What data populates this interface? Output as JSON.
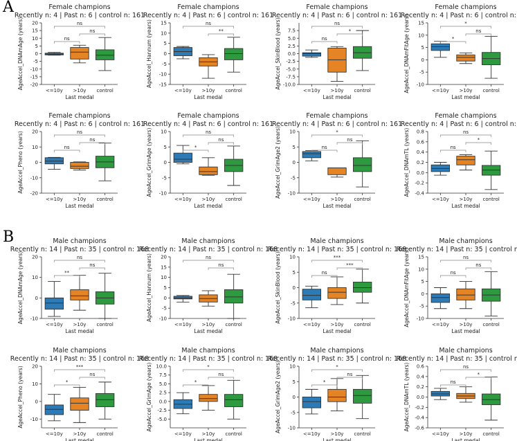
{
  "panel_labels": [
    "A",
    "B"
  ],
  "shared": {
    "xlabel": "Last medal",
    "groups": [
      "<=10y",
      ">10y",
      "control"
    ],
    "colors": [
      "#2c7bb6",
      "#e58424",
      "#2e9a3f"
    ]
  },
  "chart_data": [
    {
      "type": "box",
      "panel": "A",
      "title": "Female champions",
      "subtitle": "Recently n: 4 | Past n: 6 | control n: 161",
      "ylabel": "AgeAccel_DNAmAge (years)",
      "ylim": [
        -20,
        20
      ],
      "yticks": [
        -20,
        -15,
        -10,
        -5,
        0,
        5,
        10,
        15,
        20
      ],
      "boxes": [
        {
          "min": -1,
          "q1": -0.8,
          "median": -0.3,
          "q3": 0.3,
          "max": 0.8
        },
        {
          "min": -6,
          "q1": -3.5,
          "median": 1,
          "q3": 4,
          "max": 5.5
        },
        {
          "min": -11,
          "q1": -4,
          "median": -1,
          "q3": 2.5,
          "max": 10.5
        }
      ],
      "sig": [
        {
          "from": 0,
          "to": 2,
          "label": "ns"
        },
        {
          "from": 1,
          "to": 2,
          "label": "ns"
        },
        {
          "from": 0,
          "to": 1,
          "label": "ns"
        }
      ]
    },
    {
      "type": "box",
      "panel": "A",
      "title": "Female champions",
      "subtitle": "Recently n: 4 | Past n: 6 | control n: 161",
      "ylabel": "AgeAccel_Hannum (years)",
      "ylim": [
        -15,
        15
      ],
      "yticks": [
        -15,
        -10,
        -5,
        0,
        5,
        10,
        15
      ],
      "boxes": [
        {
          "min": -2.5,
          "q1": -1,
          "median": 1,
          "q3": 3,
          "max": 3.5
        },
        {
          "min": -12,
          "q1": -6,
          "median": -4,
          "q3": -2,
          "max": -0.5
        },
        {
          "min": -9,
          "q1": -3,
          "median": 0,
          "q3": 2.5,
          "max": 8
        }
      ],
      "sig": [
        {
          "from": 0,
          "to": 2,
          "label": "ns"
        },
        {
          "from": 1,
          "to": 2,
          "label": "**"
        }
      ]
    },
    {
      "type": "box",
      "panel": "A",
      "title": "Female champions",
      "subtitle": "Recently n: 4 | Past n: 6 | control n: 161",
      "ylabel": "AgeAccel_SkinBlood (years)",
      "ylim": [
        -10,
        10
      ],
      "yticks": [
        -10,
        -7.5,
        -5,
        -2.5,
        0,
        2.5,
        5,
        7.5
      ],
      "boxes": [
        {
          "min": -1.2,
          "q1": -0.8,
          "median": 0,
          "q3": 0.3,
          "max": 1.2
        },
        {
          "min": -9,
          "q1": -6,
          "median": -2,
          "q3": 1.8,
          "max": 2.3
        },
        {
          "min": -5.5,
          "q1": -1.5,
          "median": 0.3,
          "q3": 2.3,
          "max": 7.5
        }
      ],
      "sig": [
        {
          "from": 0,
          "to": 2,
          "label": "ns"
        },
        {
          "from": 1,
          "to": 2,
          "label": "*"
        },
        {
          "from": 0,
          "to": 1,
          "label": "ns"
        }
      ]
    },
    {
      "type": "box",
      "panel": "A",
      "title": "Female champions",
      "subtitle": "Recently n: 4 | Past n: 6 | control n: 161",
      "ylabel": "AgeAccel_DNAmFitAge (years)",
      "ylim": [
        -10,
        15
      ],
      "yticks": [
        -10,
        -5,
        0,
        5,
        10,
        15
      ],
      "boxes": [
        {
          "min": 1,
          "q1": 3.8,
          "median": 5.3,
          "q3": 6.5,
          "max": 7.5
        },
        {
          "min": -1.5,
          "q1": -0.5,
          "median": 1,
          "q3": 2,
          "max": 2.8
        },
        {
          "min": -7.5,
          "q1": -2,
          "median": 0.5,
          "q3": 3,
          "max": 9.5
        }
      ],
      "sig": [
        {
          "from": 0,
          "to": 2,
          "label": "*"
        },
        {
          "from": 1,
          "to": 2,
          "label": "ns"
        },
        {
          "from": 0,
          "to": 1,
          "label": "*"
        }
      ]
    },
    {
      "type": "box",
      "panel": "A",
      "title": "Female champions",
      "subtitle": "Recently n: 4 | Past n: 6 | control n: 161",
      "ylabel": "AgeAccel_Pheno (years)",
      "ylim": [
        -20,
        20
      ],
      "yticks": [
        -20,
        -10,
        0,
        10,
        20
      ],
      "boxes": [
        {
          "min": -4.5,
          "q1": -1,
          "median": 0.8,
          "q3": 3,
          "max": 3.2
        },
        {
          "min": -5,
          "q1": -4,
          "median": -2.5,
          "q3": 0,
          "max": 0.3
        },
        {
          "min": -12,
          "q1": -3.5,
          "median": 0.3,
          "q3": 4,
          "max": 12.5
        }
      ],
      "sig": [
        {
          "from": 0,
          "to": 2,
          "label": "ns"
        },
        {
          "from": 1,
          "to": 2,
          "label": "ns"
        },
        {
          "from": 0,
          "to": 1,
          "label": "ns"
        }
      ]
    },
    {
      "type": "box",
      "panel": "A",
      "title": "Female champions",
      "subtitle": "Recently n: 4 | Past n: 6 | control n: 161",
      "ylabel": "AgeAccel_GrimAge (years)",
      "ylim": [
        -10,
        10
      ],
      "yticks": [
        -10,
        -5,
        0,
        5,
        10
      ],
      "boxes": [
        {
          "min": -0.5,
          "q1": 0,
          "median": 1,
          "q3": 3,
          "max": 5.5
        },
        {
          "min": -4.2,
          "q1": -4,
          "median": -3,
          "q3": -1.5,
          "max": 1.5
        },
        {
          "min": -7.5,
          "q1": -3,
          "median": -1,
          "q3": 1,
          "max": 5.3
        }
      ],
      "sig": [
        {
          "from": 0,
          "to": 2,
          "label": "ns"
        },
        {
          "from": 1,
          "to": 2,
          "label": "ns"
        },
        {
          "from": 0,
          "to": 1,
          "label": "*"
        }
      ]
    },
    {
      "type": "box",
      "panel": "A",
      "title": "Female champions",
      "subtitle": "Recently n: 4 | Past n: 6 | control n: 161",
      "ylabel": "AgeAccel_GrimAge2 (years)",
      "ylim": [
        -10,
        10
      ],
      "yticks": [
        -10,
        -5,
        0,
        5,
        10
      ],
      "boxes": [
        {
          "min": 0.5,
          "q1": 1.5,
          "median": 2.8,
          "q3": 3.5,
          "max": 3.8
        },
        {
          "min": -4.8,
          "q1": -4,
          "median": -1.8,
          "q3": -1.8,
          "max": -1.8
        },
        {
          "min": -8,
          "q1": -3,
          "median": -1,
          "q3": 1.5,
          "max": 7
        }
      ],
      "sig": [
        {
          "from": 0,
          "to": 2,
          "label": "*"
        },
        {
          "from": 1,
          "to": 2,
          "label": "ns"
        },
        {
          "from": 0,
          "to": 1,
          "label": "ns"
        }
      ]
    },
    {
      "type": "box",
      "panel": "A",
      "title": "Female champions",
      "subtitle": "Recently n: 4 | Past n: 6 | control n: 161",
      "ylabel": "AgeAccel_DNAmTL (years)",
      "ylim": [
        -0.4,
        0.8
      ],
      "yticks": [
        -0.4,
        -0.2,
        0.0,
        0.2,
        0.4,
        0.6,
        0.8
      ],
      "boxes": [
        {
          "min": -0.05,
          "q1": 0.02,
          "median": 0.08,
          "q3": 0.15,
          "max": 0.2
        },
        {
          "min": 0.05,
          "q1": 0.15,
          "median": 0.25,
          "q3": 0.32,
          "max": 0.35
        },
        {
          "min": -0.33,
          "q1": -0.05,
          "median": 0.05,
          "q3": 0.14,
          "max": 0.42
        }
      ],
      "sig": [
        {
          "from": 0,
          "to": 2,
          "label": "ns"
        },
        {
          "from": 1,
          "to": 2,
          "label": "*"
        },
        {
          "from": 0,
          "to": 1,
          "label": "ns"
        }
      ]
    },
    {
      "type": "box",
      "panel": "B",
      "title": "Male champions",
      "subtitle": "Recently n: 14 | Past n: 35 | control n: 168",
      "ylabel": "AgeAccel_DNAmAge (years)",
      "ylim": [
        -10,
        20
      ],
      "yticks": [
        -10,
        0,
        10,
        20
      ],
      "boxes": [
        {
          "min": -9,
          "q1": -5.5,
          "median": -2.5,
          "q3": 0,
          "max": 8
        },
        {
          "min": -6,
          "q1": -1,
          "median": 1,
          "q3": 4,
          "max": 11
        },
        {
          "min": -10,
          "q1": -3,
          "median": 0,
          "q3": 3,
          "max": 12
        }
      ],
      "sig": [
        {
          "from": 0,
          "to": 2,
          "label": "ns"
        },
        {
          "from": 1,
          "to": 2,
          "label": "ns"
        },
        {
          "from": 0,
          "to": 1,
          "label": "**"
        }
      ]
    },
    {
      "type": "box",
      "panel": "B",
      "title": "Male champions",
      "subtitle": "Recently n: 14 | Past n: 35 | control n: 168",
      "ylabel": "AgeAccel_Hannum (years)",
      "ylim": [
        -10,
        20
      ],
      "yticks": [
        -10,
        -5,
        0,
        5,
        10,
        15,
        20
      ],
      "boxes": [
        {
          "min": -2,
          "q1": -0.5,
          "median": 0,
          "q3": 0.8,
          "max": 1.2
        },
        {
          "min": -4,
          "q1": -2,
          "median": -0.3,
          "q3": 1.5,
          "max": 3.5
        },
        {
          "min": -10,
          "q1": -2.5,
          "median": 0.5,
          "q3": 4,
          "max": 11.5
        }
      ],
      "sig": [
        {
          "from": 0,
          "to": 2,
          "label": "ns"
        },
        {
          "from": 1,
          "to": 2,
          "label": "ns"
        }
      ]
    },
    {
      "type": "box",
      "panel": "B",
      "title": "Male champions",
      "subtitle": "Recently n: 14 | Past n: 35 | control n: 168",
      "ylabel": "AgeAccel_SkinBlood (years)",
      "ylim": [
        -10,
        10
      ],
      "yticks": [
        -10,
        -5,
        0,
        5,
        10
      ],
      "boxes": [
        {
          "min": -6.5,
          "q1": -4,
          "median": -2.5,
          "q3": -0.5,
          "max": 0.5
        },
        {
          "min": -5.5,
          "q1": -3.5,
          "median": -1.5,
          "q3": 0,
          "max": 3.5
        },
        {
          "min": -5,
          "q1": -1.5,
          "median": 0,
          "q3": 1.8,
          "max": 6
        }
      ],
      "sig": [
        {
          "from": 0,
          "to": 2,
          "label": "***"
        },
        {
          "from": 1,
          "to": 2,
          "label": "***"
        },
        {
          "from": 0,
          "to": 1,
          "label": "ns"
        }
      ]
    },
    {
      "type": "box",
      "panel": "B",
      "title": "Male champions",
      "subtitle": "Recently n: 14 | Past n: 35 | control n: 168",
      "ylabel": "AgeAccel_DNAmFitAge (years)",
      "ylim": [
        -10,
        15
      ],
      "yticks": [
        -10,
        -5,
        0,
        5,
        10,
        15
      ],
      "boxes": [
        {
          "min": -6,
          "q1": -3.5,
          "median": -1.5,
          "q3": 0,
          "max": 2.5
        },
        {
          "min": -6,
          "q1": -2.5,
          "median": -0.5,
          "q3": 2,
          "max": 5
        },
        {
          "min": -9,
          "q1": -3,
          "median": -0.5,
          "q3": 2,
          "max": 9
        }
      ],
      "sig": [
        {
          "from": 0,
          "to": 2,
          "label": "ns"
        },
        {
          "from": 1,
          "to": 2,
          "label": "ns"
        },
        {
          "from": 0,
          "to": 1,
          "label": "ns"
        }
      ]
    },
    {
      "type": "box",
      "panel": "B",
      "title": "Male champions",
      "subtitle": "Recently n: 14 | Past n: 35 | control n: 168",
      "ylabel": "AgeAccel_Pheno (years)",
      "ylim": [
        -15,
        20
      ],
      "yticks": [
        -10,
        0,
        10,
        20
      ],
      "boxes": [
        {
          "min": -11,
          "q1": -7.5,
          "median": -4.5,
          "q3": -2,
          "max": 4
        },
        {
          "min": -12,
          "q1": -5,
          "median": -1,
          "q3": 2,
          "max": 8
        },
        {
          "min": -10,
          "q1": -3,
          "median": 1,
          "q3": 4.5,
          "max": 11
        }
      ],
      "sig": [
        {
          "from": 0,
          "to": 2,
          "label": "***"
        },
        {
          "from": 1,
          "to": 2,
          "label": "ns"
        },
        {
          "from": 0,
          "to": 1,
          "label": "*"
        }
      ]
    },
    {
      "type": "box",
      "panel": "B",
      "title": "Male champions",
      "subtitle": "Recently n: 14 | Past n: 35 | control n: 168",
      "ylabel": "AgeAccel_GrimAge (years)",
      "ylim": [
        -7.5,
        10
      ],
      "yticks": [
        -5.0,
        -2.5,
        0.0,
        2.5,
        5.0,
        7.5,
        10.0
      ],
      "boxes": [
        {
          "min": -3.5,
          "q1": -2,
          "median": -0.8,
          "q3": 0.5,
          "max": 2.5
        },
        {
          "min": -2.5,
          "q1": 0,
          "median": 0.8,
          "q3": 2,
          "max": 4.5
        },
        {
          "min": -5,
          "q1": -1.5,
          "median": 0.5,
          "q3": 2,
          "max": 6
        }
      ],
      "sig": [
        {
          "from": 0,
          "to": 2,
          "label": "*"
        },
        {
          "from": 1,
          "to": 2,
          "label": "ns"
        },
        {
          "from": 0,
          "to": 1,
          "label": "*"
        }
      ]
    },
    {
      "type": "box",
      "panel": "B",
      "title": "Male champions",
      "subtitle": "Recently n: 14 | Past n: 35 | control n: 168",
      "ylabel": "AgeAccel_GrimAge2 (years)",
      "ylim": [
        -10,
        10
      ],
      "yticks": [
        -10,
        -5,
        0,
        5,
        10
      ],
      "boxes": [
        {
          "min": -5.5,
          "q1": -3.5,
          "median": -1.5,
          "q3": 0,
          "max": 2.5
        },
        {
          "min": -4.5,
          "q1": -1.5,
          "median": 0,
          "q3": 2.5,
          "max": 6
        },
        {
          "min": -7,
          "q1": -2,
          "median": 0.5,
          "q3": 2.5,
          "max": 7
        }
      ],
      "sig": [
        {
          "from": 0,
          "to": 2,
          "label": "*"
        },
        {
          "from": 1,
          "to": 2,
          "label": "ns"
        },
        {
          "from": 0,
          "to": 1,
          "label": "*"
        }
      ]
    },
    {
      "type": "box",
      "panel": "B",
      "title": "Male champions",
      "subtitle": "Recently n: 14 | Past n: 35 | control n: 168",
      "ylabel": "AgeAccel_DNAmTL (years)",
      "ylim": [
        -0.6,
        0.6
      ],
      "yticks": [
        -0.6,
        -0.4,
        -0.2,
        0.0,
        0.2,
        0.4,
        0.6
      ],
      "boxes": [
        {
          "min": -0.05,
          "q1": 0.02,
          "median": 0.06,
          "q3": 0.11,
          "max": 0.17
        },
        {
          "min": -0.1,
          "q1": -0.03,
          "median": 0.02,
          "q3": 0.07,
          "max": 0.2
        },
        {
          "min": -0.45,
          "q1": -0.15,
          "median": -0.05,
          "q3": 0.06,
          "max": 0.39
        }
      ],
      "sig": [
        {
          "from": 0,
          "to": 2,
          "label": "ns"
        },
        {
          "from": 1,
          "to": 2,
          "label": "*"
        },
        {
          "from": 0,
          "to": 1,
          "label": "ns"
        }
      ]
    }
  ]
}
